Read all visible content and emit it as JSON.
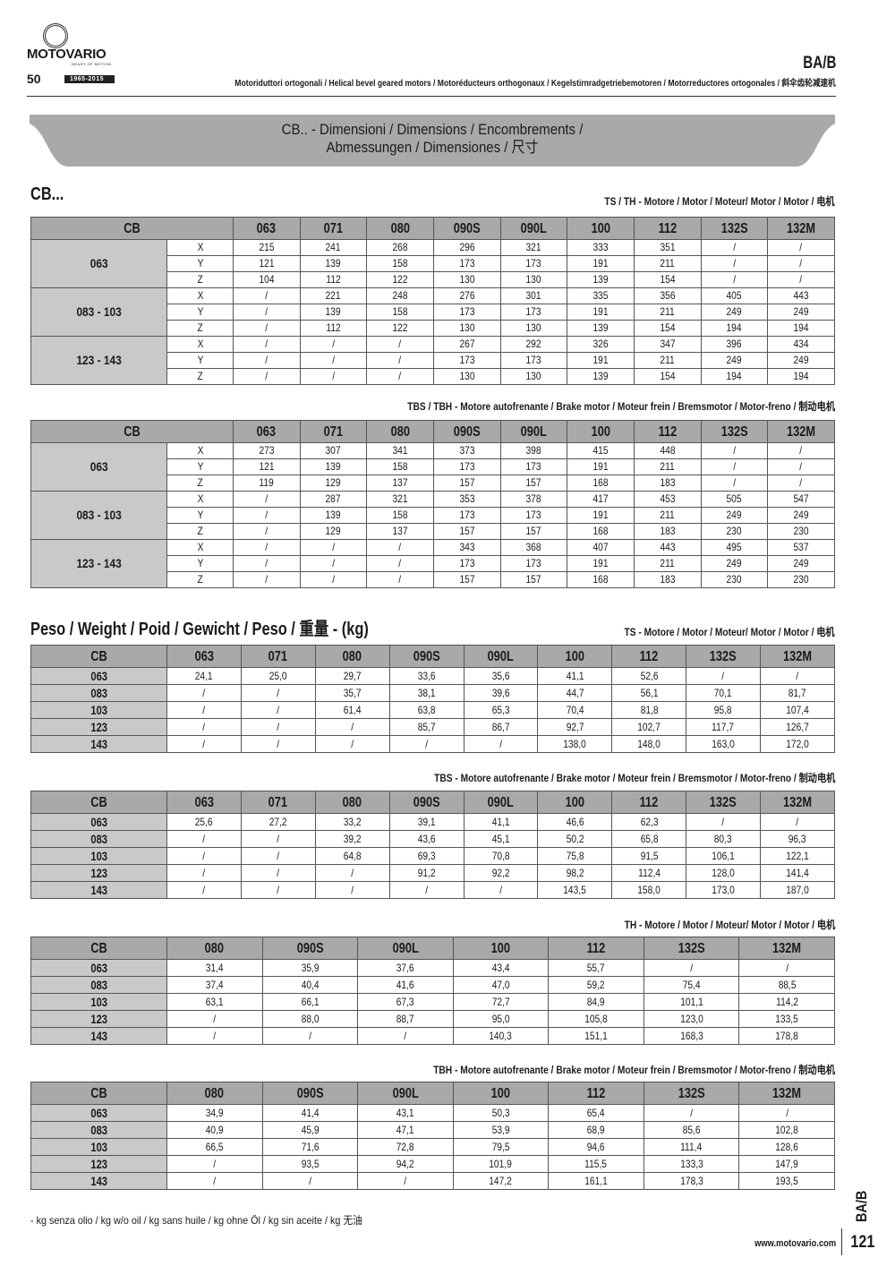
{
  "header": {
    "brand": "MOTOVARIO",
    "tagline": "HEART OF MOTION",
    "anniversary": "50",
    "years": "1965-2015",
    "code": "BA/B",
    "subtitle": "Motoriduttori ortogonali / Helical bevel geared motors / Motoréducteurs orthogonaux / Kegelstirnradgetriebemotoren / Motorreductores ortogonales / 斜伞齿轮减速机"
  },
  "banner": {
    "line1": "CB.. - Dimensioni / Dimensions / Encombrements /",
    "line2": "Abmessungen / Dimensiones / 尺寸"
  },
  "dimensions_heading": "CB...",
  "weight_heading": "Peso / Weight / Poid / Gewicht / Peso / 重量 - (kg)",
  "dim_tables": [
    {
      "caption": "TS / TH - Motore / Motor / Moteur/ Motor / Motor / 电机",
      "corner": "CB",
      "columns": [
        "063",
        "071",
        "080",
        "090S",
        "090L",
        "100",
        "112",
        "132S",
        "132M"
      ],
      "groups": [
        {
          "label": "063",
          "rows": [
            {
              "axis": "X",
              "values": [
                "215",
                "241",
                "268",
                "296",
                "321",
                "333",
                "351",
                "/",
                "/"
              ]
            },
            {
              "axis": "Y",
              "values": [
                "121",
                "139",
                "158",
                "173",
                "173",
                "191",
                "211",
                "/",
                "/"
              ]
            },
            {
              "axis": "Z",
              "values": [
                "104",
                "112",
                "122",
                "130",
                "130",
                "139",
                "154",
                "/",
                "/"
              ]
            }
          ]
        },
        {
          "label": "083 - 103",
          "rows": [
            {
              "axis": "X",
              "values": [
                "/",
                "221",
                "248",
                "276",
                "301",
                "335",
                "356",
                "405",
                "443"
              ]
            },
            {
              "axis": "Y",
              "values": [
                "/",
                "139",
                "158",
                "173",
                "173",
                "191",
                "211",
                "249",
                "249"
              ]
            },
            {
              "axis": "Z",
              "values": [
                "/",
                "112",
                "122",
                "130",
                "130",
                "139",
                "154",
                "194",
                "194"
              ]
            }
          ]
        },
        {
          "label": "123 - 143",
          "rows": [
            {
              "axis": "X",
              "values": [
                "/",
                "/",
                "/",
                "267",
                "292",
                "326",
                "347",
                "396",
                "434"
              ]
            },
            {
              "axis": "Y",
              "values": [
                "/",
                "/",
                "/",
                "173",
                "173",
                "191",
                "211",
                "249",
                "249"
              ]
            },
            {
              "axis": "Z",
              "values": [
                "/",
                "/",
                "/",
                "130",
                "130",
                "139",
                "154",
                "194",
                "194"
              ]
            }
          ]
        }
      ]
    },
    {
      "caption": "TBS / TBH - Motore autofrenante / Brake motor / Moteur frein / Bremsmotor / Motor-freno / 制动电机",
      "corner": "CB",
      "columns": [
        "063",
        "071",
        "080",
        "090S",
        "090L",
        "100",
        "112",
        "132S",
        "132M"
      ],
      "groups": [
        {
          "label": "063",
          "rows": [
            {
              "axis": "X",
              "values": [
                "273",
                "307",
                "341",
                "373",
                "398",
                "415",
                "448",
                "/",
                "/"
              ]
            },
            {
              "axis": "Y",
              "values": [
                "121",
                "139",
                "158",
                "173",
                "173",
                "191",
                "211",
                "/",
                "/"
              ]
            },
            {
              "axis": "Z",
              "values": [
                "119",
                "129",
                "137",
                "157",
                "157",
                "168",
                "183",
                "/",
                "/"
              ]
            }
          ]
        },
        {
          "label": "083 - 103",
          "rows": [
            {
              "axis": "X",
              "values": [
                "/",
                "287",
                "321",
                "353",
                "378",
                "417",
                "453",
                "505",
                "547"
              ]
            },
            {
              "axis": "Y",
              "values": [
                "/",
                "139",
                "158",
                "173",
                "173",
                "191",
                "211",
                "249",
                "249"
              ]
            },
            {
              "axis": "Z",
              "values": [
                "/",
                "129",
                "137",
                "157",
                "157",
                "168",
                "183",
                "230",
                "230"
              ]
            }
          ]
        },
        {
          "label": "123 - 143",
          "rows": [
            {
              "axis": "X",
              "values": [
                "/",
                "/",
                "/",
                "343",
                "368",
                "407",
                "443",
                "495",
                "537"
              ]
            },
            {
              "axis": "Y",
              "values": [
                "/",
                "/",
                "/",
                "173",
                "173",
                "191",
                "211",
                "249",
                "249"
              ]
            },
            {
              "axis": "Z",
              "values": [
                "/",
                "/",
                "/",
                "157",
                "157",
                "168",
                "183",
                "230",
                "230"
              ]
            }
          ]
        }
      ]
    }
  ],
  "weight_tables": [
    {
      "caption": "TS - Motore / Motor / Moteur/ Motor / Motor / 电机",
      "corner": "CB",
      "columns": [
        "063",
        "071",
        "080",
        "090S",
        "090L",
        "100",
        "112",
        "132S",
        "132M"
      ],
      "rows": [
        {
          "label": "063",
          "values": [
            "24,1",
            "25,0",
            "29,7",
            "33,6",
            "35,6",
            "41,1",
            "52,6",
            "/",
            "/"
          ]
        },
        {
          "label": "083",
          "values": [
            "/",
            "/",
            "35,7",
            "38,1",
            "39,6",
            "44,7",
            "56,1",
            "70,1",
            "81,7"
          ]
        },
        {
          "label": "103",
          "values": [
            "/",
            "/",
            "61,4",
            "63,8",
            "65,3",
            "70,4",
            "81,8",
            "95,8",
            "107,4"
          ]
        },
        {
          "label": "123",
          "values": [
            "/",
            "/",
            "/",
            "85,7",
            "86,7",
            "92,7",
            "102,7",
            "117,7",
            "126,7"
          ]
        },
        {
          "label": "143",
          "values": [
            "/",
            "/",
            "/",
            "/",
            "/",
            "138,0",
            "148,0",
            "163,0",
            "172,0"
          ]
        }
      ]
    },
    {
      "caption": "TBS - Motore autofrenante / Brake motor / Moteur frein / Bremsmotor / Motor-freno / 制动电机",
      "corner": "CB",
      "columns": [
        "063",
        "071",
        "080",
        "090S",
        "090L",
        "100",
        "112",
        "132S",
        "132M"
      ],
      "rows": [
        {
          "label": "063",
          "values": [
            "25,6",
            "27,2",
            "33,2",
            "39,1",
            "41,1",
            "46,6",
            "62,3",
            "/",
            "/"
          ]
        },
        {
          "label": "083",
          "values": [
            "/",
            "/",
            "39,2",
            "43,6",
            "45,1",
            "50,2",
            "65,8",
            "80,3",
            "96,3"
          ]
        },
        {
          "label": "103",
          "values": [
            "/",
            "/",
            "64,8",
            "69,3",
            "70,8",
            "75,8",
            "91,5",
            "106,1",
            "122,1"
          ]
        },
        {
          "label": "123",
          "values": [
            "/",
            "/",
            "/",
            "91,2",
            "92,2",
            "98,2",
            "112,4",
            "128,0",
            "141,4"
          ]
        },
        {
          "label": "143",
          "values": [
            "/",
            "/",
            "/",
            "/",
            "/",
            "143,5",
            "158,0",
            "173,0",
            "187,0"
          ]
        }
      ]
    },
    {
      "caption": "TH - Motore / Motor / Moteur/ Motor / Motor / 电机",
      "corner": "CB",
      "columns": [
        "080",
        "090S",
        "090L",
        "100",
        "112",
        "132S",
        "132M"
      ],
      "rows": [
        {
          "label": "063",
          "values": [
            "31,4",
            "35,9",
            "37,6",
            "43,4",
            "55,7",
            "/",
            "/"
          ]
        },
        {
          "label": "083",
          "values": [
            "37,4",
            "40,4",
            "41,6",
            "47,0",
            "59,2",
            "75,4",
            "88,5"
          ]
        },
        {
          "label": "103",
          "values": [
            "63,1",
            "66,1",
            "67,3",
            "72,7",
            "84,9",
            "101,1",
            "114,2"
          ]
        },
        {
          "label": "123",
          "values": [
            "/",
            "88,0",
            "88,7",
            "95,0",
            "105,8",
            "123,0",
            "133,5"
          ]
        },
        {
          "label": "143",
          "values": [
            "/",
            "/",
            "/",
            "140,3",
            "151,1",
            "168,3",
            "178,8"
          ]
        }
      ]
    },
    {
      "caption": "TBH - Motore autofrenante / Brake motor / Moteur frein / Bremsmotor / Motor-freno / 制动电机",
      "corner": "CB",
      "columns": [
        "080",
        "090S",
        "090L",
        "100",
        "112",
        "132S",
        "132M"
      ],
      "rows": [
        {
          "label": "063",
          "values": [
            "34,9",
            "41,4",
            "43,1",
            "50,3",
            "65,4",
            "/",
            "/"
          ]
        },
        {
          "label": "083",
          "values": [
            "40,9",
            "45,9",
            "47,1",
            "53,9",
            "68,9",
            "85,6",
            "102,8"
          ]
        },
        {
          "label": "103",
          "values": [
            "66,5",
            "71,6",
            "72,8",
            "79,5",
            "94,6",
            "111,4",
            "128,6"
          ]
        },
        {
          "label": "123",
          "values": [
            "/",
            "93,5",
            "94,2",
            "101,9",
            "115,5",
            "133,3",
            "147,9"
          ]
        },
        {
          "label": "143",
          "values": [
            "/",
            "/",
            "/",
            "147,2",
            "161,1",
            "178,3",
            "193,5"
          ]
        }
      ]
    }
  ],
  "footnote": "-    kg senza olio / kg w/o oil / kg sans huile / kg ohne Öl / kg sin aceite / kg 无油",
  "footer": {
    "side_code": "BA/B",
    "website": "www.motovario.com",
    "page_number": "121"
  },
  "colors": {
    "header_fill": "#a9a9a9",
    "label_fill": "#c9c9c9"
  }
}
